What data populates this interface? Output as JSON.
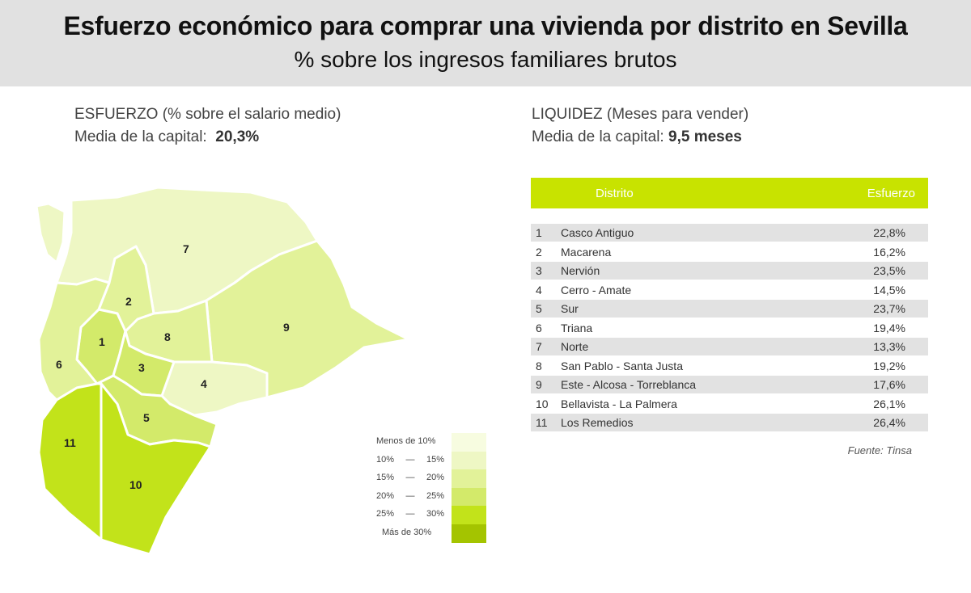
{
  "header": {
    "title": "Esfuerzo económico para comprar una vivienda por distrito en Sevilla",
    "subtitle": "% sobre los ingresos familiares brutos"
  },
  "effort": {
    "heading": "ESFUERZO (% sobre el salario medio)",
    "average_label": "Media de la capital:",
    "average_value": "20,3%"
  },
  "liquidity": {
    "heading": "LIQUIDEZ (Meses para vender)",
    "average_label": "Media de la capital:",
    "average_value": "9,5 meses"
  },
  "map": {
    "district_labels": [
      "1",
      "2",
      "3",
      "4",
      "5",
      "6",
      "7",
      "8",
      "9",
      "10",
      "11"
    ]
  },
  "legend": {
    "items": [
      {
        "label": "Menos de 10%",
        "color": "#f7fce0"
      },
      {
        "from": "10%",
        "dash": "—",
        "to": "15%",
        "color": "#eef7c4"
      },
      {
        "from": "15%",
        "dash": "—",
        "to": "20%",
        "color": "#e2f299"
      },
      {
        "from": "20%",
        "dash": "—",
        "to": "25%",
        "color": "#d3ea6a"
      },
      {
        "from": "25%",
        "dash": "—",
        "to": "30%",
        "color": "#c2e31a"
      },
      {
        "label": "Más de 30%",
        "color": "#a4c400"
      }
    ]
  },
  "table": {
    "col_district": "Distrito",
    "col_effort": "Esfuerzo",
    "rows": [
      {
        "num": "1",
        "name": "Casco Antiguo",
        "value": "22,8%"
      },
      {
        "num": "2",
        "name": "Macarena",
        "value": "16,2%"
      },
      {
        "num": "3",
        "name": "Nervión",
        "value": "23,5%"
      },
      {
        "num": "4",
        "name": "Cerro - Amate",
        "value": "14,5%"
      },
      {
        "num": "5",
        "name": "Sur",
        "value": "23,7%"
      },
      {
        "num": "6",
        "name": "Triana",
        "value": "19,4%"
      },
      {
        "num": "7",
        "name": "Norte",
        "value": "13,3%"
      },
      {
        "num": "8",
        "name": "San Pablo - Santa Justa",
        "value": "19,2%"
      },
      {
        "num": "9",
        "name": "Este - Alcosa - Torreblanca",
        "value": "17,6%"
      },
      {
        "num": "10",
        "name": "Bellavista - La Palmera",
        "value": "26,1%"
      },
      {
        "num": "11",
        "name": "Los Remedios",
        "value": "26,4%"
      }
    ]
  },
  "source": "Fuente: Tinsa"
}
